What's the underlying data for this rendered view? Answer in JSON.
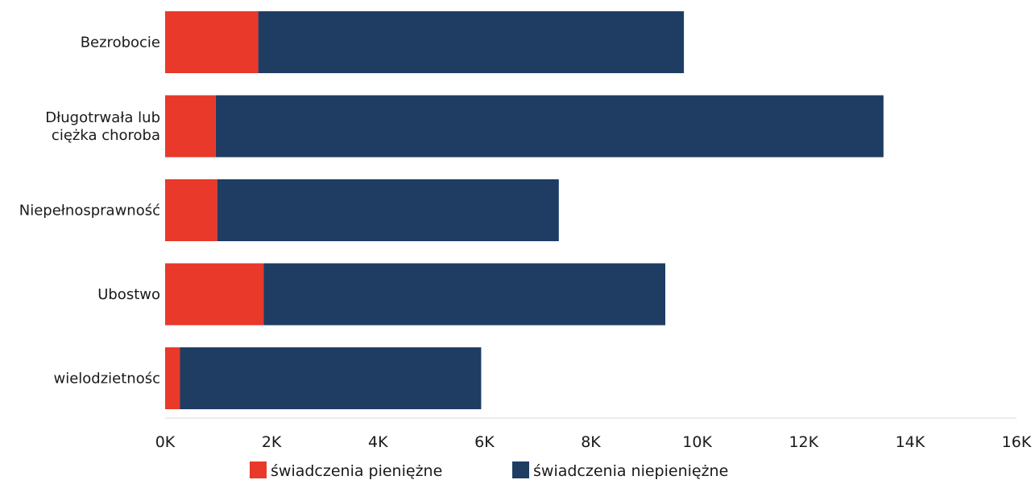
{
  "colors": {
    "cash": "#e8392b",
    "noncash": "#1f3d63",
    "axis_line": "#d7d7d7",
    "text": "#1a1a1a"
  },
  "chart_data": {
    "type": "bar",
    "orientation": "horizontal",
    "stacked": true,
    "title": "",
    "xlabel": "",
    "ylabel": "",
    "categories": [
      [
        "Bezrobocie"
      ],
      [
        "Długotrwała lub",
        "ciężka choroba"
      ],
      [
        "Niepełnosprawność"
      ],
      [
        "Ubostwo"
      ],
      [
        "wielodzietnośc"
      ]
    ],
    "series": [
      {
        "name": "świadczenia pieniężne",
        "color": "#e8392b",
        "values": [
          1750,
          950,
          980,
          1850,
          280
        ]
      },
      {
        "name": "świadczenia niepieniężne",
        "color": "#1f3d63",
        "values": [
          8000,
          12550,
          6420,
          7550,
          5660
        ]
      }
    ],
    "xlim": [
      0,
      16000
    ],
    "xticks": [
      0,
      2000,
      4000,
      6000,
      8000,
      10000,
      12000,
      14000,
      16000
    ],
    "xtick_labels": [
      "0K",
      "2K",
      "4K",
      "6K",
      "8K",
      "10K",
      "12K",
      "14K",
      "16K"
    ],
    "grid": false,
    "legend": {
      "position": "bottom-center"
    }
  }
}
